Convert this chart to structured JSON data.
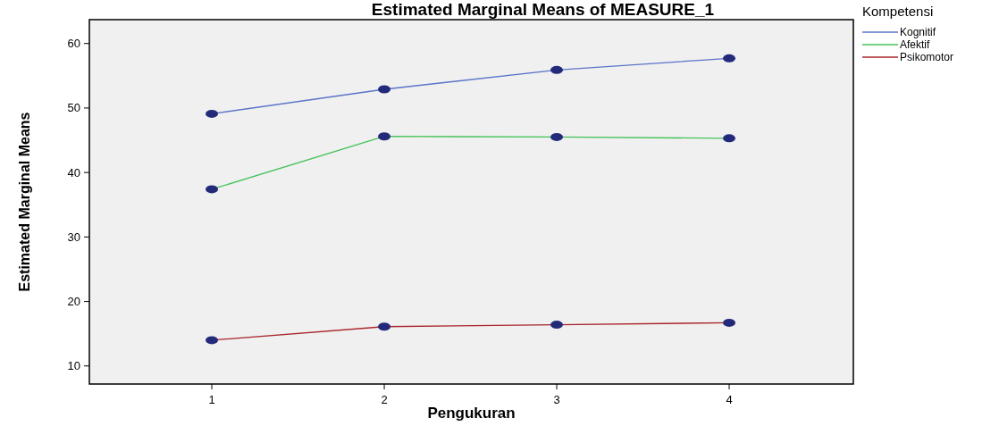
{
  "chart_data": {
    "type": "line",
    "title": "Estimated Marginal Means of MEASURE_1",
    "xlabel": "Pengukuran",
    "ylabel": "Estimated Marginal Means",
    "legend_title": "Kompetensi",
    "x": [
      1,
      2,
      3,
      4
    ],
    "xlim": [
      0.29,
      4.72
    ],
    "xticks": [
      1,
      2,
      3,
      4
    ],
    "ylim": [
      7.2,
      63.7
    ],
    "yticks": [
      10,
      20,
      30,
      40,
      50,
      60
    ],
    "series": [
      {
        "name": "Kognitif",
        "color": "#5a74c8",
        "values": [
          49.1,
          52.9,
          55.9,
          57.7
        ]
      },
      {
        "name": "Afektif",
        "color": "#45c35a",
        "values": [
          37.4,
          45.6,
          45.5,
          45.3
        ]
      },
      {
        "name": "Psikomotor",
        "color": "#a8242a",
        "values": [
          14.0,
          16.1,
          16.4,
          16.7
        ]
      }
    ],
    "marker": "circle",
    "legend": "top right",
    "grid": false
  }
}
